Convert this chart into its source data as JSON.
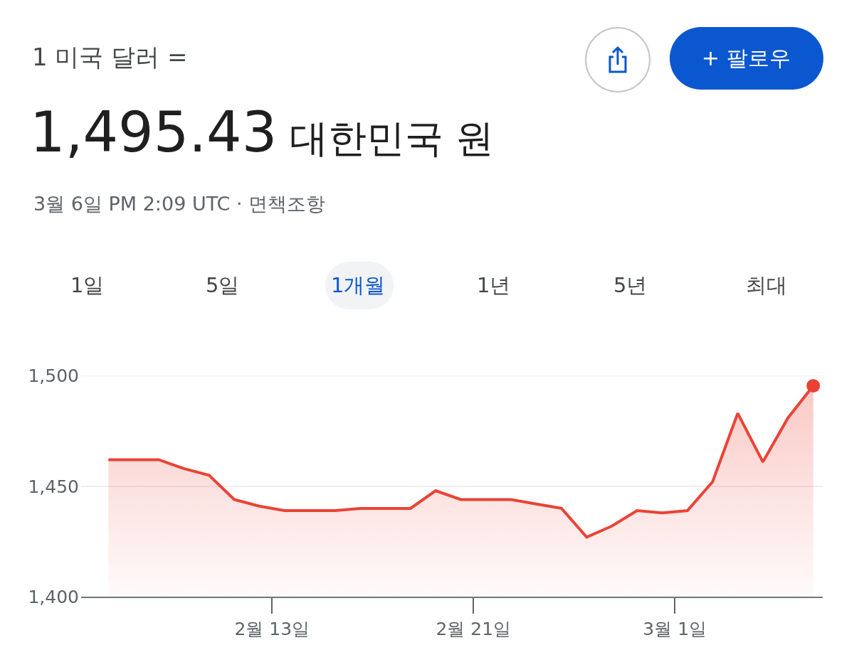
{
  "chart_data": {
    "type": "area",
    "title": "1 미국 달러 =",
    "subtitle": "1,495.43 대한민국 원",
    "annotations": [
      "3월 6일 PM 2:09 UTC · 면책조항",
      "1일",
      "5일",
      "1개월",
      "1년",
      "5년",
      "최대",
      "+ 팔로우"
    ],
    "x": [
      "--02-06T12:00",
      "--02-07T12:00",
      "--02-08T12:00",
      "--02-09T12:00",
      "--02-10T12:00",
      "--02-11T12:00",
      "--02-12T12:00",
      "--02-13T12:00",
      "--02-14T12:00",
      "--02-15T12:00",
      "--02-16T12:00",
      "--02-17T12:00",
      "--02-18T12:00",
      "--02-19T12:00",
      "--02-20T12:00",
      "--02-21T12:00",
      "--02-22T12:00",
      "--02-23T12:00",
      "--02-24T12:00",
      "--02-25T12:00",
      "--02-26T12:00",
      "--02-27T12:00",
      "--02-28T12:00",
      "--03-01T12:00",
      "--03-02T12:00",
      "--03-03T12:00",
      "--03-04T12:00",
      "--03-05T12:00",
      "--03-06T12:00"
    ],
    "series": [
      {
        "color": "#ea4335",
        "values": [
          1462,
          1462,
          1462,
          1458,
          1455,
          1444,
          1441,
          1439,
          1439,
          1439,
          1440,
          1440,
          1440,
          1448,
          1444,
          1444,
          1444,
          1442,
          1440,
          1427,
          1432,
          1439,
          1438,
          1439,
          1452,
          1483,
          1461,
          1481,
          1495.43
        ]
      },
      {
        "type": "scatter",
        "marker": "circle",
        "color": "#ea4335",
        "x": [
          "--03-06T12:00"
        ],
        "values": [
          1495.43
        ]
      }
    ],
    "xlim": [
      "--02-05T10:00",
      "--03-06T21:00"
    ],
    "xticks": [
      {
        "value": "--02-13",
        "label": "2월 13일"
      },
      {
        "value": "--02-21",
        "label": "2월 21일"
      },
      {
        "value": "--03-01",
        "label": "3월 1일"
      }
    ],
    "ylim": [
      1400,
      1500
    ],
    "yticks": [
      {
        "value": 1400,
        "label": "1,400"
      },
      {
        "value": 1450,
        "label": "1,450"
      },
      {
        "value": 1500,
        "label": "1,500"
      }
    ],
    "grid": "y"
  }
}
